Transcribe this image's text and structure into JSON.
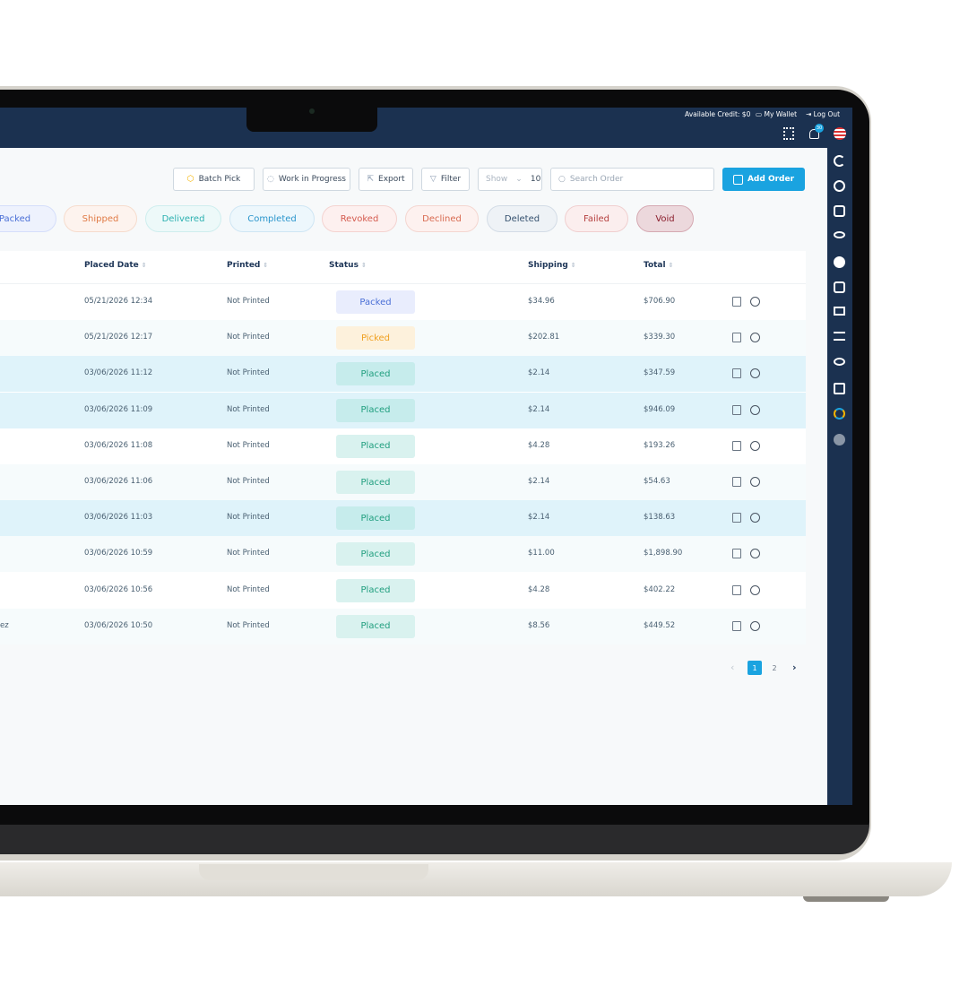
{
  "header": {
    "available_credit": "Available Credit: $0",
    "wallet": "My Wallet",
    "logout": "Log Out",
    "notifications": "30"
  },
  "toolbar": {
    "buttons": [
      "Batch Pick",
      "Work in Progress",
      "Export",
      "Filter"
    ],
    "show_label": "Show",
    "show_value": "10",
    "search_placeholder": "Search Order",
    "add_order": "Add Order"
  },
  "status_tabs": [
    "Packed",
    "Shipped",
    "Delivered",
    "Completed",
    "Revoked",
    "Declined",
    "Deleted",
    "Failed",
    "Void"
  ],
  "table": {
    "columns": [
      "Placed Date",
      "Printed",
      "Status",
      "Shipping",
      "Total"
    ],
    "rows": [
      {
        "placed_date": "05/21/2026 12:34",
        "printed": "Not Printed",
        "status": "Packed",
        "shipping": "$34.96",
        "total": "$706.90"
      },
      {
        "placed_date": "05/21/2026 12:17",
        "printed": "Not Printed",
        "status": "Picked",
        "shipping": "$202.81",
        "total": "$339.30"
      },
      {
        "placed_date": "03/06/2026 11:12",
        "printed": "Not Printed",
        "status": "Placed",
        "shipping": "$2.14",
        "total": "$347.59"
      },
      {
        "placed_date": "03/06/2026 11:09",
        "printed": "Not Printed",
        "status": "Placed",
        "shipping": "$2.14",
        "total": "$946.09"
      },
      {
        "placed_date": "03/06/2026 11:08",
        "printed": "Not Printed",
        "status": "Placed",
        "shipping": "$4.28",
        "total": "$193.26"
      },
      {
        "placed_date": "03/06/2026 11:06",
        "printed": "Not Printed",
        "status": "Placed",
        "shipping": "$2.14",
        "total": "$54.63"
      },
      {
        "placed_date": "03/06/2026 11:03",
        "printed": "Not Printed",
        "status": "Placed",
        "shipping": "$2.14",
        "total": "$138.63"
      },
      {
        "placed_date": "03/06/2026 10:59",
        "printed": "Not Printed",
        "status": "Placed",
        "shipping": "$11.00",
        "total": "$1,898.90"
      },
      {
        "placed_date": "03/06/2026 10:56",
        "printed": "Not Printed",
        "status": "Placed",
        "shipping": "$4.28",
        "total": "$402.22"
      },
      {
        "customer": "ez",
        "placed_date": "03/06/2026 10:50",
        "printed": "Not Printed",
        "status": "Placed",
        "shipping": "$8.56",
        "total": "$449.52"
      }
    ]
  },
  "pagination": {
    "pages": [
      "1",
      "2"
    ]
  }
}
